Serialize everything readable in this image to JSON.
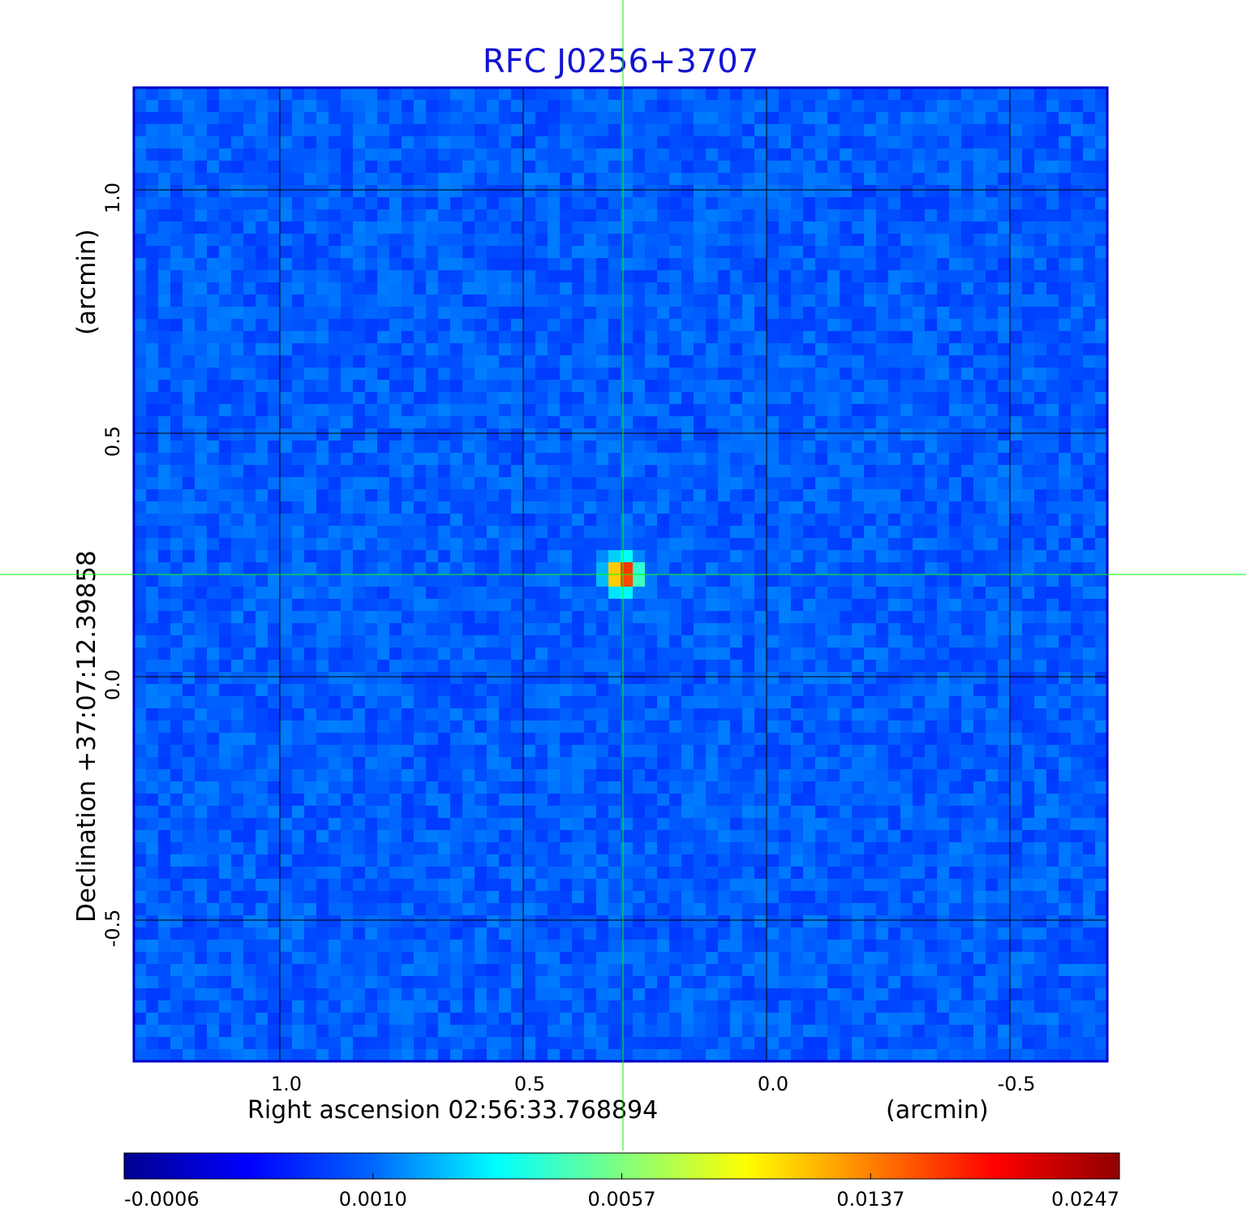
{
  "chart_data": {
    "type": "heatmap",
    "title": "RFC J0256+3707",
    "xlabel": "Right ascension  02:56:33.768894",
    "xunit": "(arcmin)",
    "ylabel": "Declination  +37:07:12.39858",
    "yunit": "(arcmin)",
    "xlim": [
      1.3,
      -0.7
    ],
    "ylim": [
      -0.79,
      1.21
    ],
    "xticks": [
      1.0,
      0.5,
      0.0,
      -0.5
    ],
    "xtick_labels": [
      "1.0",
      "0.5",
      "0.0",
      "-0.5"
    ],
    "yticks": [
      1.0,
      0.5,
      0.0,
      -0.5
    ],
    "ytick_labels": [
      "1.0",
      "0.5",
      "0.0",
      "-0.5"
    ],
    "grid": true,
    "colormap": "jet",
    "colorbar": {
      "orientation": "horizontal",
      "ticks": [
        -0.0006,
        0.001,
        0.0057,
        0.0137,
        0.0247
      ],
      "tick_labels": [
        "-0.0006",
        "0.0010",
        "0.0057",
        "0.0137",
        "0.0247"
      ]
    },
    "source_peak": {
      "x": 0.295,
      "y": 0.21,
      "value": 0.0247
    },
    "crosshair": {
      "x": 0.295,
      "y": 0.21,
      "color": "#00ff00"
    },
    "background_level": 0.0,
    "colors": {
      "title": "#1414d2",
      "frame": "#0000cd",
      "grid": "#000000",
      "crosshair": "#00ff00"
    }
  }
}
